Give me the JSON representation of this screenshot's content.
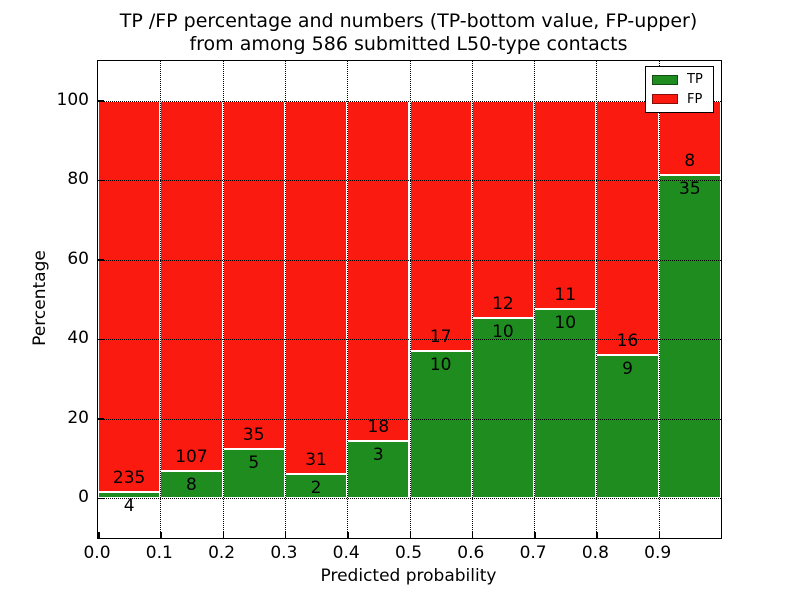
{
  "title": {
    "line1": "TP /FP percentage and numbers (TP-bottom value, FP-upper)",
    "line2": "from among 586 submitted L50-type contacts"
  },
  "axes": {
    "xlabel": "Predicted probability",
    "ylabel": "Percentage",
    "x_tick_labels": [
      "0.0",
      "0.1",
      "0.2",
      "0.3",
      "0.4",
      "0.5",
      "0.6",
      "0.7",
      "0.8",
      "0.9"
    ],
    "y_tick_labels": [
      "0",
      "20",
      "40",
      "60",
      "80",
      "100"
    ],
    "y_tick_values": [
      0,
      20,
      40,
      60,
      80,
      100
    ]
  },
  "legend": {
    "position": "upper right",
    "entries": [
      {
        "label": "TP",
        "color": "#1f8c1f"
      },
      {
        "label": "FP",
        "color": "#fa1a0f"
      }
    ]
  },
  "colors": {
    "tp": "#1f8c1f",
    "fp": "#fa1a0f",
    "bar_edge": "#ffffff",
    "grid": "#000000",
    "text": "#000000",
    "background": "#ffffff"
  },
  "chart_data": {
    "type": "bar",
    "stacked": true,
    "title": "TP /FP percentage and numbers (TP-bottom value, FP-upper) from among 586 submitted L50-type contacts",
    "xlabel": "Predicted probability",
    "ylabel": "Percentage",
    "total_contacts": 586,
    "bin_width": 0.1,
    "bin_starts": [
      0.0,
      0.1,
      0.2,
      0.3,
      0.4,
      0.5,
      0.6,
      0.7,
      0.8,
      0.9
    ],
    "xlim": [
      0.0,
      1.0
    ],
    "ylim": [
      -10,
      110
    ],
    "grid": "dotted",
    "legend_position": "upper right",
    "series": [
      {
        "name": "TP",
        "color": "#1f8c1f",
        "counts": [
          4,
          8,
          5,
          2,
          3,
          10,
          10,
          10,
          9,
          35
        ],
        "percent": [
          1.67,
          6.96,
          12.5,
          6.06,
          14.29,
          37.04,
          45.45,
          47.62,
          36.0,
          81.4
        ]
      },
      {
        "name": "FP",
        "color": "#fa1a0f",
        "counts": [
          235,
          107,
          35,
          31,
          18,
          17,
          12,
          11,
          16,
          8
        ],
        "percent": [
          98.33,
          93.04,
          87.5,
          93.94,
          85.71,
          62.96,
          54.55,
          52.38,
          64.0,
          18.6
        ]
      }
    ]
  }
}
